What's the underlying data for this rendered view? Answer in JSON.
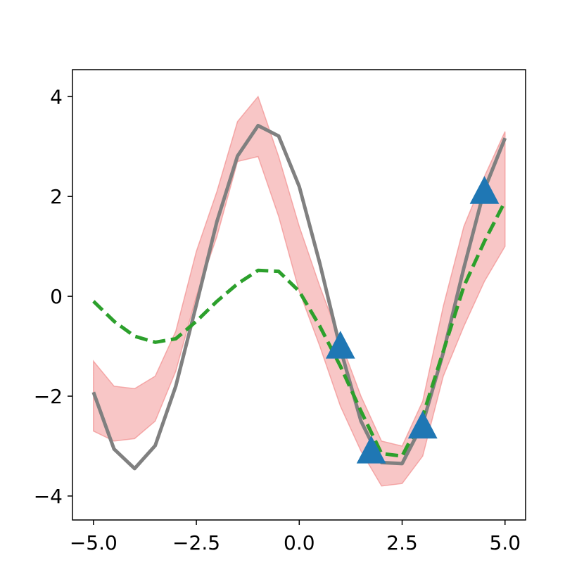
{
  "chart_data": {
    "type": "line",
    "x": [
      -5,
      -4.5,
      -4,
      -3.5,
      -3,
      -2.5,
      -2,
      -1.5,
      -1,
      -0.5,
      0,
      0.5,
      1,
      1.5,
      2,
      2.5,
      3,
      3.5,
      4,
      4.5,
      5
    ],
    "band": {
      "color": "#f08080",
      "upper": [
        -1.3,
        -1.8,
        -1.85,
        -1.6,
        -0.7,
        0.9,
        2.1,
        3.5,
        4.0,
        2.8,
        1.4,
        0.2,
        -0.9,
        -2.0,
        -2.9,
        -3.0,
        -2.1,
        -0.2,
        1.4,
        2.4,
        3.3
      ],
      "lower": [
        -2.7,
        -2.9,
        -2.85,
        -2.5,
        -1.5,
        0.0,
        1.2,
        2.7,
        2.8,
        1.6,
        0.1,
        -1.0,
        -2.2,
        -3.1,
        -3.8,
        -3.75,
        -3.2,
        -1.6,
        -0.6,
        0.3,
        1.0
      ]
    },
    "series": [
      {
        "color": "#808080",
        "style": "solid",
        "values": [
          -1.92,
          -3.06,
          -3.45,
          -2.99,
          -1.8,
          -0.17,
          1.5,
          2.81,
          3.42,
          3.21,
          2.2,
          0.66,
          -1.05,
          -2.5,
          -3.33,
          -3.35,
          -2.55,
          -1.13,
          0.57,
          2.14,
          3.17
        ]
      },
      {
        "color": "#2ca02c",
        "style": "dashed",
        "values": [
          -0.1,
          -0.5,
          -0.8,
          -0.92,
          -0.85,
          -0.5,
          -0.1,
          0.25,
          0.52,
          0.5,
          0.1,
          -0.6,
          -1.4,
          -2.3,
          -3.15,
          -3.2,
          -2.4,
          -1.1,
          0.2,
          1.1,
          1.9
        ]
      }
    ],
    "points": {
      "color": "#1f77b4",
      "marker": "triangle",
      "x": [
        1,
        1.75,
        3,
        4.5
      ],
      "y": [
        -1,
        -3.1,
        -2.6,
        2.1
      ]
    },
    "xlim": [
      -5.51,
      5.5
    ],
    "ylim": [
      -4.48,
      4.54
    ],
    "xticks": [
      {
        "value": -5,
        "label": "−5.0"
      },
      {
        "value": -2.5,
        "label": "−2.5"
      },
      {
        "value": 0,
        "label": "0.0"
      },
      {
        "value": 2.5,
        "label": "2.5"
      },
      {
        "value": 5,
        "label": "5.0"
      }
    ],
    "yticks": [
      {
        "value": -4,
        "label": "−4"
      },
      {
        "value": -2,
        "label": "−2"
      },
      0,
      2,
      4
    ],
    "grid": false
  }
}
